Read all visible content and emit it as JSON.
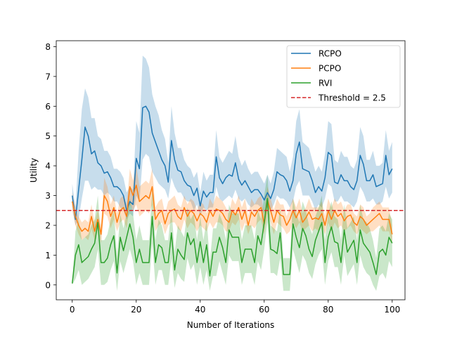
{
  "chart_data": {
    "type": "line",
    "xlabel": "Number of Iterations",
    "ylabel": "Utility",
    "xlim": [
      -5,
      104
    ],
    "ylim": [
      -0.5,
      8.2
    ],
    "xticks": [
      0,
      20,
      40,
      60,
      80,
      100
    ],
    "yticks": [
      0,
      1,
      2,
      3,
      4,
      5,
      6,
      7,
      8
    ],
    "legend_position": "top-right",
    "threshold": {
      "name": "Threshold = 2.5",
      "value": 2.5,
      "color": "#d62728",
      "style": "dashed"
    },
    "series": [
      {
        "name": "RCPO",
        "color": "#1f77b4",
        "values": [
          3.0,
          2.2,
          3.2,
          4.2,
          5.3,
          5.0,
          4.4,
          4.5,
          4.1,
          4.0,
          3.75,
          3.8,
          3.6,
          3.3,
          3.3,
          3.2,
          3.0,
          2.5,
          2.8,
          2.7,
          4.25,
          3.9,
          5.95,
          6.0,
          5.8,
          5.1,
          4.8,
          4.5,
          4.2,
          4.0,
          3.45,
          4.85,
          4.2,
          3.85,
          3.8,
          3.5,
          3.35,
          3.3,
          3.0,
          3.25,
          2.65,
          3.15,
          2.95,
          3.1,
          3.1,
          4.3,
          3.6,
          3.4,
          3.6,
          3.7,
          3.65,
          4.1,
          3.55,
          3.35,
          3.5,
          3.3,
          3.1,
          3.2,
          3.2,
          3.05,
          2.85,
          3.1,
          2.9,
          3.2,
          3.8,
          3.7,
          3.65,
          3.5,
          3.15,
          3.5,
          4.4,
          4.8,
          3.9,
          3.85,
          3.8,
          3.5,
          3.1,
          3.3,
          3.15,
          3.6,
          4.45,
          4.35,
          3.45,
          3.4,
          3.7,
          3.5,
          3.5,
          3.3,
          3.2,
          3.5,
          4.35,
          4.05,
          3.5,
          3.5,
          3.7,
          3.3,
          3.35,
          3.4,
          4.35,
          3.7,
          3.9
        ],
        "lower": [
          2.6,
          2.0,
          2.2,
          2.9,
          3.5,
          3.5,
          3.2,
          3.3,
          3.2,
          3.2,
          3.0,
          3.1,
          3.0,
          2.8,
          2.8,
          2.6,
          2.5,
          2.2,
          2.4,
          2.3,
          3.0,
          2.8,
          4.2,
          4.4,
          4.3,
          3.8,
          3.6,
          3.4,
          3.3,
          3.2,
          2.9,
          3.6,
          3.3,
          3.1,
          3.1,
          2.9,
          2.8,
          2.8,
          2.5,
          2.7,
          2.3,
          2.6,
          2.5,
          2.6,
          2.6,
          3.3,
          2.9,
          2.8,
          2.9,
          3.0,
          2.9,
          3.2,
          2.9,
          2.8,
          2.9,
          2.7,
          2.6,
          2.7,
          2.7,
          2.6,
          2.4,
          2.6,
          2.5,
          2.7,
          3.0,
          2.9,
          2.9,
          2.8,
          2.6,
          2.8,
          3.3,
          3.5,
          3.0,
          3.0,
          3.0,
          2.8,
          2.5,
          2.7,
          2.6,
          2.9,
          3.4,
          3.3,
          2.8,
          2.8,
          3.0,
          2.8,
          2.8,
          2.7,
          2.6,
          2.8,
          3.3,
          3.1,
          2.8,
          2.8,
          2.9,
          2.7,
          2.7,
          2.8,
          3.3,
          2.9,
          3.1
        ],
        "upper": [
          3.4,
          2.6,
          4.5,
          5.9,
          6.6,
          6.3,
          5.6,
          5.6,
          5.0,
          4.9,
          4.5,
          4.5,
          4.3,
          3.9,
          3.9,
          3.8,
          3.6,
          3.1,
          3.3,
          3.2,
          5.5,
          5.1,
          7.7,
          7.6,
          7.3,
          6.4,
          6.0,
          5.7,
          5.2,
          4.9,
          4.1,
          6.0,
          5.1,
          4.6,
          4.6,
          4.2,
          4.0,
          3.9,
          3.6,
          3.8,
          3.1,
          3.8,
          3.5,
          3.7,
          3.7,
          5.2,
          4.3,
          4.1,
          4.3,
          4.5,
          4.4,
          5.0,
          4.3,
          4.0,
          4.2,
          3.9,
          3.7,
          3.8,
          3.8,
          3.6,
          3.4,
          3.7,
          3.4,
          3.8,
          4.6,
          4.5,
          4.4,
          4.3,
          3.8,
          4.3,
          5.5,
          5.9,
          4.8,
          4.7,
          4.6,
          4.2,
          3.8,
          4.0,
          3.8,
          4.4,
          5.5,
          5.4,
          4.2,
          4.1,
          4.5,
          4.3,
          4.3,
          4.0,
          3.9,
          4.2,
          5.3,
          5.0,
          4.2,
          4.2,
          4.5,
          4.0,
          4.0,
          4.1,
          5.2,
          4.5,
          4.8
        ]
      },
      {
        "name": "PCPO",
        "color": "#ff7f0e",
        "values": [
          2.8,
          2.3,
          2.0,
          1.8,
          1.9,
          1.8,
          2.3,
          1.8,
          2.2,
          1.7,
          3.0,
          2.8,
          2.3,
          2.6,
          2.1,
          2.5,
          2.6,
          2.3,
          3.3,
          3.0,
          3.35,
          2.8,
          2.9,
          3.0,
          2.9,
          3.3,
          2.2,
          2.4,
          2.5,
          2.05,
          2.4,
          2.5,
          2.55,
          2.3,
          2.2,
          2.6,
          2.3,
          2.5,
          2.4,
          2.15,
          2.4,
          2.3,
          2.1,
          2.5,
          2.3,
          2.55,
          2.5,
          2.4,
          2.2,
          2.1,
          2.5,
          2.35,
          2.6,
          2.2,
          2.5,
          2.0,
          2.45,
          2.3,
          2.5,
          2.6,
          2.05,
          2.85,
          2.5,
          2.1,
          2.5,
          2.35,
          2.3,
          2.0,
          2.2,
          2.5,
          2.25,
          2.5,
          2.1,
          2.25,
          2.45,
          2.2,
          2.25,
          2.2,
          2.4,
          2.0,
          2.5,
          2.2,
          2.5,
          2.3,
          2.4,
          2.15,
          2.3,
          2.35,
          2.1,
          2.0,
          2.3,
          2.2,
          2.0,
          2.1,
          2.2,
          2.3,
          2.4,
          2.2,
          2.2,
          2.2,
          1.7
        ],
        "lower": [
          2.5,
          2.0,
          1.7,
          1.5,
          1.6,
          1.5,
          1.9,
          1.5,
          1.9,
          1.4,
          2.4,
          2.3,
          1.9,
          2.2,
          1.8,
          2.1,
          2.2,
          1.9,
          2.7,
          2.5,
          2.7,
          2.3,
          2.4,
          2.5,
          2.4,
          2.7,
          1.8,
          2.0,
          2.1,
          1.7,
          2.0,
          2.1,
          2.1,
          1.9,
          1.8,
          2.2,
          1.9,
          2.1,
          2.0,
          1.8,
          2.0,
          1.9,
          1.8,
          2.1,
          1.9,
          2.1,
          2.1,
          2.0,
          1.8,
          1.8,
          2.1,
          2.0,
          2.2,
          1.8,
          2.1,
          1.7,
          2.0,
          1.9,
          2.1,
          2.2,
          1.7,
          2.4,
          2.1,
          1.7,
          2.1,
          2.0,
          1.9,
          1.7,
          1.8,
          2.1,
          1.9,
          2.1,
          1.8,
          1.9,
          2.0,
          1.8,
          1.9,
          1.8,
          2.0,
          1.7,
          2.1,
          1.8,
          2.1,
          1.9,
          2.0,
          1.8,
          1.9,
          2.0,
          1.8,
          1.7,
          1.9,
          1.8,
          1.7,
          1.8,
          1.8,
          1.9,
          2.0,
          1.8,
          1.8,
          1.8,
          1.4
        ],
        "upper": [
          3.1,
          2.6,
          2.3,
          2.1,
          2.2,
          2.1,
          2.7,
          2.1,
          2.5,
          2.0,
          3.6,
          3.3,
          2.7,
          3.0,
          2.4,
          2.9,
          3.0,
          2.7,
          3.9,
          3.5,
          4.0,
          3.3,
          3.4,
          3.5,
          3.4,
          3.9,
          2.6,
          2.8,
          2.9,
          2.4,
          2.8,
          2.9,
          3.0,
          2.7,
          2.6,
          3.0,
          2.7,
          2.9,
          2.8,
          2.5,
          2.8,
          2.7,
          2.4,
          2.9,
          2.7,
          3.0,
          2.9,
          2.8,
          2.6,
          2.4,
          2.9,
          2.7,
          3.0,
          2.6,
          2.9,
          2.3,
          2.9,
          2.7,
          2.9,
          3.0,
          2.4,
          3.3,
          2.9,
          2.5,
          2.9,
          2.7,
          2.7,
          2.3,
          2.6,
          2.9,
          2.6,
          2.9,
          2.4,
          2.6,
          2.9,
          2.6,
          2.6,
          2.6,
          2.8,
          2.3,
          2.9,
          2.6,
          2.9,
          2.7,
          2.8,
          2.5,
          2.7,
          2.7,
          2.4,
          2.3,
          2.7,
          2.6,
          2.3,
          2.4,
          2.6,
          2.7,
          2.8,
          2.6,
          2.6,
          2.6,
          2.0
        ]
      },
      {
        "name": "RVI",
        "color": "#2ca02c",
        "values": [
          0.05,
          1.0,
          1.35,
          0.75,
          0.85,
          0.95,
          1.2,
          1.4,
          2.1,
          0.75,
          0.75,
          0.9,
          1.35,
          1.65,
          0.4,
          1.6,
          1.15,
          1.6,
          2.05,
          1.6,
          0.75,
          1.2,
          0.75,
          0.75,
          0.75,
          2.3,
          0.75,
          1.35,
          1.25,
          0.75,
          0.75,
          1.75,
          0.5,
          1.2,
          1.0,
          0.85,
          1.75,
          1.35,
          1.55,
          0.75,
          1.45,
          0.75,
          1.35,
          0.3,
          1.1,
          1.1,
          1.6,
          1.25,
          0.75,
          1.85,
          1.6,
          1.6,
          1.6,
          0.75,
          1.2,
          1.2,
          1.2,
          0.75,
          1.65,
          1.35,
          2.1,
          2.9,
          1.2,
          1.15,
          1.05,
          1.75,
          0.35,
          0.35,
          0.35,
          2.05,
          1.6,
          1.25,
          1.9,
          1.65,
          1.2,
          0.95,
          1.5,
          1.8,
          2.1,
          0.75,
          1.6,
          1.95,
          1.45,
          1.4,
          0.75,
          1.85,
          1.1,
          1.3,
          1.5,
          0.75,
          1.85,
          1.4,
          1.25,
          1.1,
          0.75,
          0.35,
          1.1,
          1.2,
          1.0,
          1.6,
          1.4
        ],
        "lower": [
          0.0,
          0.2,
          0.5,
          0.0,
          0.1,
          0.2,
          0.4,
          0.6,
          1.2,
          0.0,
          0.0,
          0.1,
          0.5,
          0.8,
          -0.2,
          0.8,
          0.4,
          0.8,
          1.2,
          0.8,
          0.0,
          0.4,
          0.0,
          0.0,
          0.0,
          1.4,
          0.0,
          0.5,
          0.5,
          0.0,
          0.0,
          0.9,
          -0.1,
          0.4,
          0.2,
          0.1,
          0.9,
          0.5,
          0.7,
          0.0,
          0.6,
          0.0,
          0.5,
          -0.2,
          0.3,
          0.3,
          0.8,
          0.4,
          0.0,
          1.0,
          0.8,
          0.8,
          0.8,
          0.0,
          0.4,
          0.4,
          0.4,
          0.0,
          0.8,
          0.5,
          1.2,
          2.1,
          0.4,
          0.4,
          0.3,
          0.9,
          -0.2,
          -0.2,
          -0.2,
          1.2,
          0.8,
          0.4,
          1.0,
          0.8,
          0.4,
          0.2,
          0.7,
          1.0,
          1.2,
          0.0,
          0.8,
          1.1,
          0.6,
          0.6,
          0.0,
          1.0,
          0.3,
          0.5,
          0.7,
          0.0,
          1.0,
          0.6,
          0.4,
          0.3,
          0.0,
          -0.2,
          0.3,
          0.4,
          0.2,
          0.8,
          0.6
        ],
        "upper": [
          0.1,
          1.8,
          2.2,
          1.5,
          1.6,
          1.7,
          2.0,
          2.2,
          3.0,
          1.5,
          1.5,
          1.7,
          2.2,
          2.5,
          1.0,
          2.4,
          1.9,
          2.4,
          2.9,
          2.4,
          1.5,
          2.0,
          1.5,
          1.5,
          1.5,
          3.2,
          1.5,
          2.2,
          2.0,
          1.5,
          1.5,
          2.6,
          1.1,
          2.0,
          1.8,
          1.6,
          2.6,
          2.2,
          2.4,
          1.5,
          2.3,
          1.5,
          2.2,
          0.8,
          1.9,
          1.9,
          2.4,
          2.1,
          1.5,
          2.7,
          2.4,
          2.4,
          2.4,
          1.5,
          2.0,
          2.0,
          2.0,
          1.5,
          2.5,
          2.2,
          3.0,
          3.7,
          2.0,
          1.9,
          1.8,
          2.6,
          0.9,
          0.9,
          0.9,
          2.9,
          2.4,
          2.1,
          2.8,
          2.5,
          2.0,
          1.7,
          2.3,
          2.6,
          3.0,
          1.5,
          2.4,
          2.8,
          2.3,
          2.2,
          1.5,
          2.7,
          1.9,
          2.1,
          2.3,
          1.5,
          2.7,
          2.2,
          2.1,
          1.9,
          1.5,
          0.9,
          1.9,
          2.0,
          1.8,
          2.4,
          2.2
        ]
      }
    ]
  }
}
